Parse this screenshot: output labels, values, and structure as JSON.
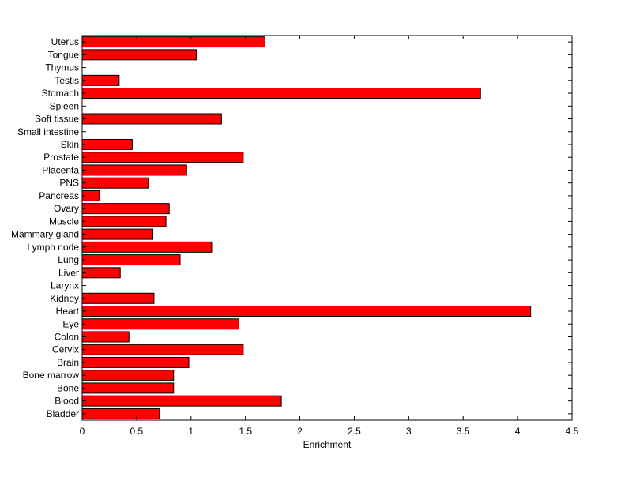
{
  "chart_data": {
    "type": "bar",
    "orientation": "horizontal",
    "xlabel": "Enrichment",
    "ylabel": "",
    "title": "",
    "xlim": [
      0,
      4.5
    ],
    "xticks": [
      "0",
      "0.5",
      "1",
      "1.5",
      "2",
      "2.5",
      "3",
      "3.5",
      "4",
      "4.5"
    ],
    "grid": false,
    "bar_color": "#ff0000",
    "categories": [
      "Uterus",
      "Tongue",
      "Thymus",
      "Testis",
      "Stomach",
      "Spleen",
      "Soft tissue",
      "Small intestine",
      "Skin",
      "Prostate",
      "Placenta",
      "PNS",
      "Pancreas",
      "Ovary",
      "Muscle",
      "Mammary gland",
      "Lymph node",
      "Lung",
      "Liver",
      "Larynx",
      "Kidney",
      "Heart",
      "Eye",
      "Colon",
      "Cervix",
      "Brain",
      "Bone marrow",
      "Bone",
      "Blood",
      "Bladder"
    ],
    "values": [
      1.68,
      1.05,
      0,
      0.34,
      3.66,
      0,
      1.28,
      0,
      0.46,
      1.48,
      0.96,
      0.61,
      0.16,
      0.8,
      0.77,
      0.65,
      1.19,
      0.9,
      0.35,
      0,
      0.66,
      4.12,
      1.44,
      0.43,
      1.48,
      0.98,
      0.84,
      0.84,
      1.83,
      0.71
    ]
  }
}
